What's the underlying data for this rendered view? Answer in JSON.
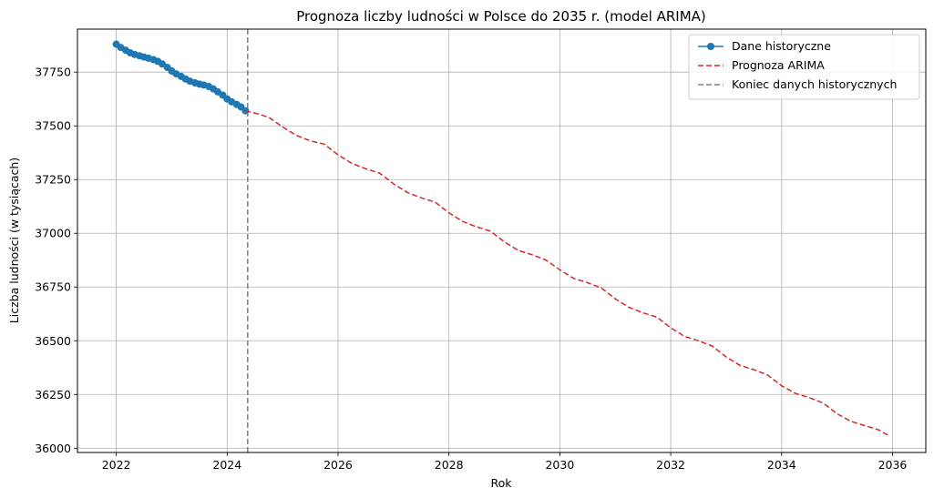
{
  "chart_data": {
    "type": "line",
    "title": "Prognoza liczby ludności w Polsce do 2035 r. (model ARIMA)",
    "xlabel": "Rok",
    "ylabel": "Liczba ludności (w tysiącach)",
    "xlim": [
      2021.3,
      2036.6
    ],
    "ylim": [
      35980,
      37950
    ],
    "x_ticks": [
      2022,
      2024,
      2026,
      2028,
      2030,
      2032,
      2034,
      2036
    ],
    "y_ticks": [
      36000,
      36250,
      36500,
      36750,
      37000,
      37250,
      37500,
      37750
    ],
    "grid": true,
    "legend_position": "top-right",
    "vline": {
      "x": 2024.37,
      "label": "Koniec danych historycznych",
      "color": "#808080"
    },
    "series": [
      {
        "name": "Dane historyczne",
        "color": "#1f77b4",
        "style": "solid-markers",
        "x": [
          2022.0,
          2022.08,
          2022.17,
          2022.25,
          2022.33,
          2022.42,
          2022.5,
          2022.58,
          2022.67,
          2022.75,
          2022.83,
          2022.92,
          2023.0,
          2023.08,
          2023.17,
          2023.25,
          2023.33,
          2023.42,
          2023.5,
          2023.58,
          2023.67,
          2023.75,
          2023.83,
          2023.92,
          2024.0,
          2024.08,
          2024.17,
          2024.25,
          2024.33
        ],
        "y": [
          37880,
          37865,
          37852,
          37840,
          37832,
          37826,
          37820,
          37815,
          37808,
          37800,
          37788,
          37772,
          37755,
          37742,
          37730,
          37718,
          37708,
          37700,
          37694,
          37690,
          37683,
          37672,
          37658,
          37643,
          37625,
          37612,
          37600,
          37588,
          37570
        ]
      },
      {
        "name": "Prognoza ARIMA",
        "color": "#d62728",
        "style": "dashed",
        "x": [
          2024.33,
          2024.5,
          2024.75,
          2025.0,
          2025.25,
          2025.5,
          2025.75,
          2026.0,
          2026.25,
          2026.5,
          2026.75,
          2027.0,
          2027.25,
          2027.5,
          2027.75,
          2028.0,
          2028.25,
          2028.5,
          2028.75,
          2029.0,
          2029.25,
          2029.5,
          2029.75,
          2030.0,
          2030.25,
          2030.5,
          2030.75,
          2031.0,
          2031.25,
          2031.5,
          2031.75,
          2032.0,
          2032.25,
          2032.5,
          2032.75,
          2033.0,
          2033.25,
          2033.5,
          2033.75,
          2034.0,
          2034.25,
          2034.5,
          2034.75,
          2035.0,
          2035.25,
          2035.5,
          2035.75,
          2035.92
        ],
        "y": [
          37570,
          37560,
          37540,
          37495,
          37455,
          37430,
          37415,
          37365,
          37325,
          37300,
          37280,
          37230,
          37190,
          37165,
          37145,
          37095,
          37055,
          37030,
          37010,
          36960,
          36920,
          36900,
          36875,
          36830,
          36790,
          36770,
          36745,
          36695,
          36655,
          36630,
          36610,
          36560,
          36520,
          36500,
          36475,
          36425,
          36385,
          36365,
          36340,
          36290,
          36255,
          36235,
          36210,
          36160,
          36125,
          36105,
          36085,
          36060
        ]
      }
    ]
  }
}
